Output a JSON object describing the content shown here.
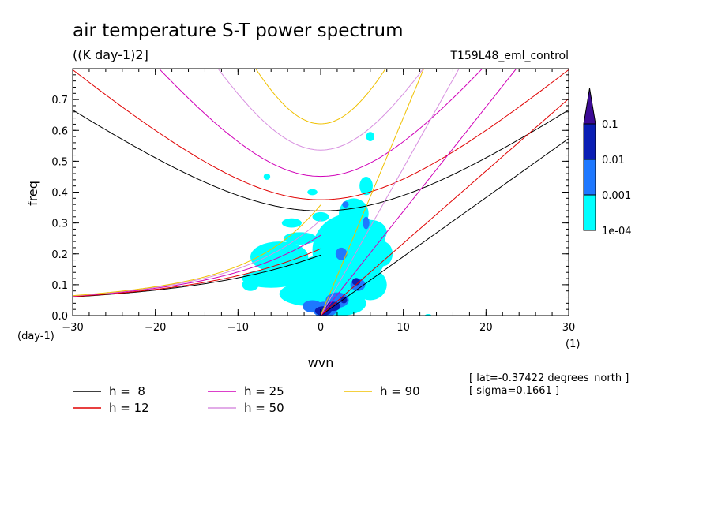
{
  "chart_data": {
    "type": "contour",
    "title": "air temperature S-T power spectrum",
    "subtitle": "((K day-1)2]",
    "experiment": "T159L48_eml_control",
    "xlabel": "wvn",
    "ylabel": "freq",
    "x_unit": "(1)",
    "y_unit": "(day-1)",
    "xlim": [
      -30,
      30
    ],
    "ylim": [
      0,
      0.8
    ],
    "x_ticks": [
      -30,
      -20,
      -10,
      0,
      10,
      20,
      30
    ],
    "y_ticks": [
      0,
      0.1,
      0.2,
      0.3,
      0.4,
      0.5,
      0.6,
      0.7
    ],
    "x_tick_labels": [
      "−30",
      "−20",
      "−10",
      "0",
      "10",
      "20",
      "30"
    ],
    "y_tick_labels": [
      "0.0",
      "0.1",
      "0.2",
      "0.3",
      "0.4",
      "0.5",
      "0.6",
      "0.7"
    ],
    "colorbar": {
      "levels": [
        "1e-04",
        "0.001",
        "0.01",
        "0.1"
      ],
      "colors": [
        "#00ffff",
        "#1e78ff",
        "#0a1eb4",
        "#3c0a96"
      ]
    },
    "dispersion_curves": [
      {
        "name": "h =  8",
        "h": 8,
        "color": "#000000"
      },
      {
        "name": "h = 12",
        "h": 12,
        "color": "#e00000"
      },
      {
        "name": "h = 25",
        "h": 25,
        "color": "#d000b8"
      },
      {
        "name": "h = 50",
        "h": 50,
        "color": "#d890e0"
      },
      {
        "name": "h = 90",
        "h": 90,
        "color": "#f0c000"
      }
    ],
    "annotations": [
      "[ lat=-0.37422 degrees_north ]",
      "[ sigma=0.1661 ]"
    ]
  }
}
